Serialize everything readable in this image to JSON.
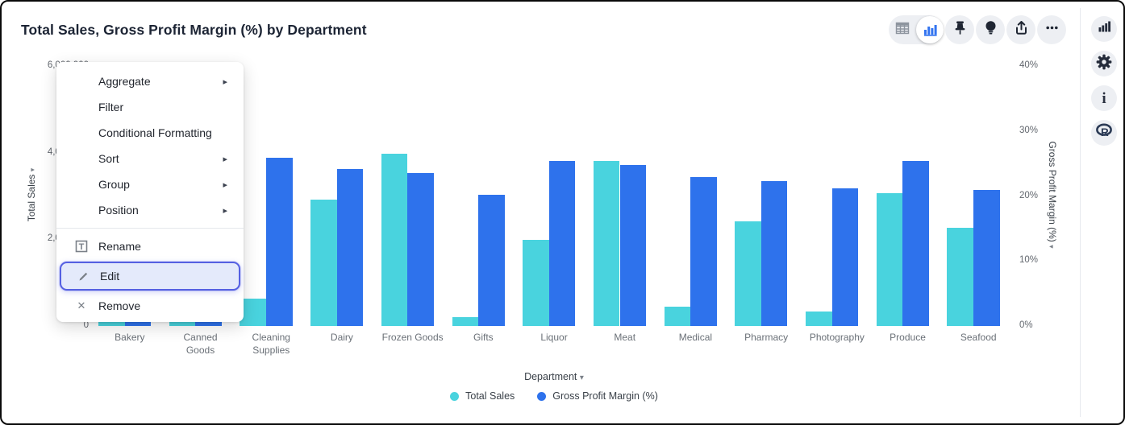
{
  "header": {
    "title": "Total Sales, Gross Profit Margin (%) by Department"
  },
  "toolbar": {
    "view_toggle": [
      {
        "name": "table-view",
        "icon": "table-icon",
        "selected": false
      },
      {
        "name": "chart-view",
        "icon": "bar-chart-icon",
        "selected": true
      }
    ],
    "buttons": [
      {
        "name": "pin",
        "icon": "pin-icon"
      },
      {
        "name": "suggestions",
        "icon": "lightbulb-icon"
      },
      {
        "name": "export",
        "icon": "share-icon"
      },
      {
        "name": "more-options",
        "icon": "ellipsis-icon"
      }
    ]
  },
  "sidebar": {
    "buttons": [
      {
        "name": "chart-panel",
        "icon": "bar-chart-icon"
      },
      {
        "name": "settings",
        "icon": "gear-icon"
      },
      {
        "name": "info",
        "icon": "info-icon"
      },
      {
        "name": "r-logo",
        "icon": "r-logo-icon"
      }
    ]
  },
  "menu": {
    "items": [
      {
        "label": "Aggregate",
        "submenu": true
      },
      {
        "label": "Filter"
      },
      {
        "label": "Conditional Formatting"
      },
      {
        "label": "Sort",
        "submenu": true
      },
      {
        "label": "Group",
        "submenu": true
      },
      {
        "label": "Position",
        "submenu": true
      },
      {
        "label": "Rename",
        "icon": "rename-icon",
        "separator_before": true
      },
      {
        "label": "Edit",
        "icon": "edit-pencil-icon",
        "highlighted": true
      },
      {
        "label": "Remove",
        "icon": "remove-x-icon"
      }
    ]
  },
  "chart_data": {
    "type": "bar",
    "title": "Total Sales, Gross Profit Margin (%) by Department",
    "categories": [
      "Bakery",
      "Canned Goods",
      "Cleaning Supplies",
      "Dairy",
      "Frozen Goods",
      "Gifts",
      "Liquor",
      "Meat",
      "Medical",
      "Pharmacy",
      "Photography",
      "Produce",
      "Seafood"
    ],
    "series": [
      {
        "name": "Total Sales",
        "axis": "left",
        "color": "#49D3DE",
        "values": [
          1700000,
          1300000,
          630000,
          2920000,
          3970000,
          200000,
          1990000,
          3810000,
          450000,
          2410000,
          330000,
          3070000,
          2270000
        ]
      },
      {
        "name": "Gross Profit Margin (%)",
        "axis": "right",
        "color": "#2E72EC",
        "values": [
          24.0,
          24.5,
          25.9,
          24.1,
          23.5,
          20.2,
          25.4,
          24.8,
          22.9,
          22.3,
          21.2,
          25.4,
          20.9
        ]
      }
    ],
    "xlabel": "Department",
    "left_axis": {
      "label": "Total Sales",
      "tick_labels": [
        "6,000,000",
        "4,000,000",
        "2,000,000",
        "0"
      ],
      "tick_values": [
        6000000,
        4000000,
        2000000,
        0
      ],
      "range": [
        0,
        6000000
      ]
    },
    "right_axis": {
      "label": "Gross Profit Margin (%)",
      "tick_labels": [
        "40%",
        "30%",
        "20%",
        "10%",
        "0%"
      ],
      "tick_values": [
        40,
        30,
        20,
        10,
        0
      ],
      "range": [
        0,
        40
      ]
    },
    "grid": false,
    "legend_position": "bottom"
  },
  "legend": {
    "items": [
      {
        "label": "Total Sales",
        "color": "#49D3DE"
      },
      {
        "label": "Gross Profit Margin (%)",
        "color": "#2E72EC"
      }
    ]
  },
  "colors": {
    "teal": "#49D3DE",
    "blue": "#2E72EC",
    "highlight_border": "#5560E2",
    "highlight_bg": "#E4EAFB",
    "button_bg": "#EDEFF3",
    "icon_dark": "#242B3A",
    "selected_blue": "#3374F0"
  }
}
